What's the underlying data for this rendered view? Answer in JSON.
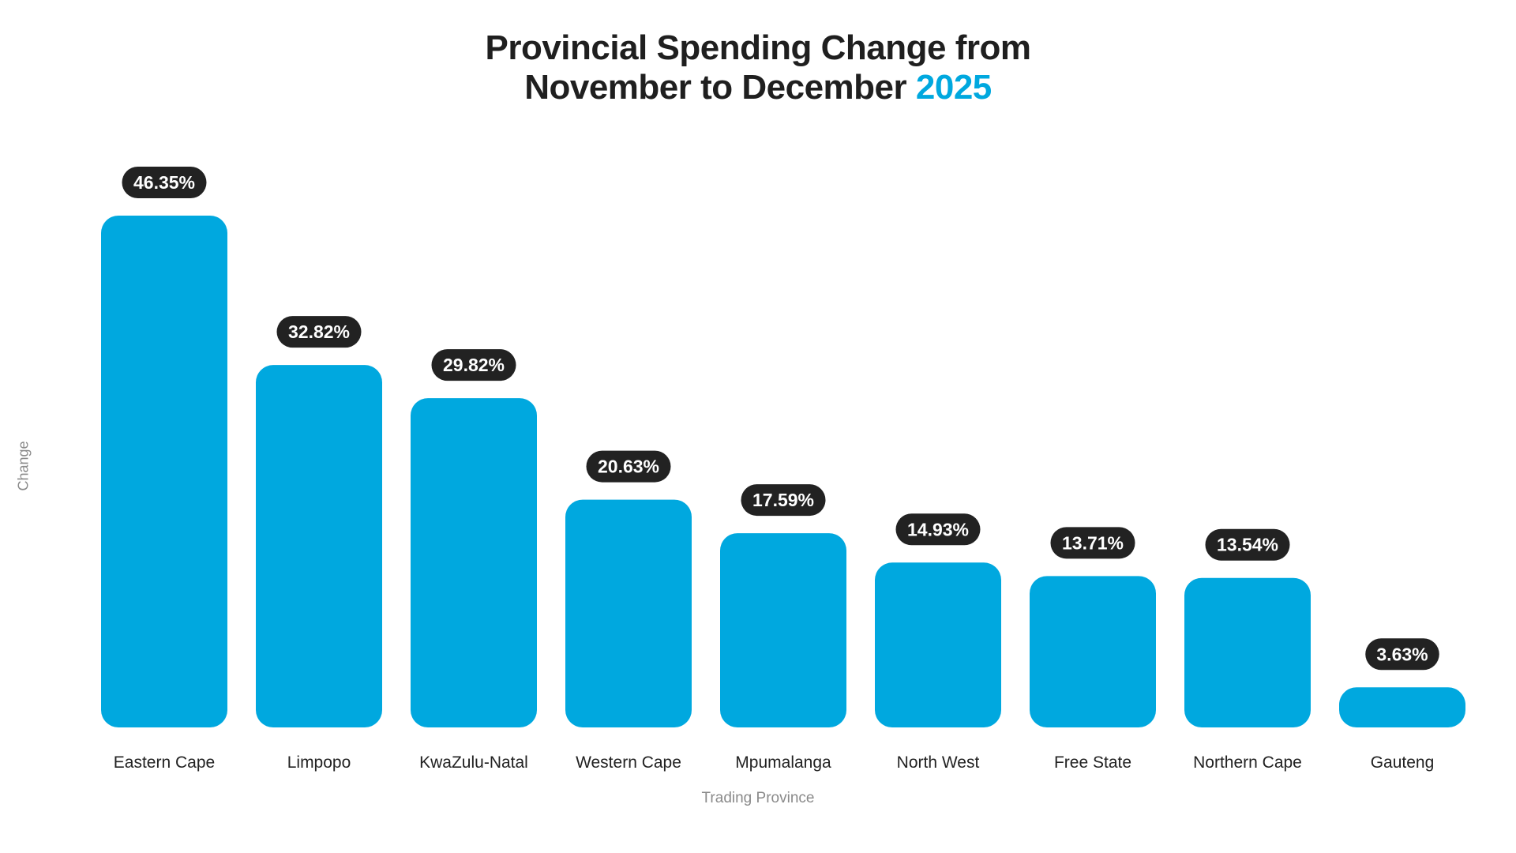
{
  "chart_data": {
    "type": "bar",
    "title_line1": "Provincial Spending Change from",
    "title_line2": "November to December",
    "title_year": "2025",
    "xlabel": "Trading Province",
    "ylabel": "Change",
    "categories": [
      "Eastern Cape",
      "Limpopo",
      "KwaZulu-Natal",
      "Western Cape",
      "Mpumalanga",
      "North West",
      "Free State",
      "Northern Cape",
      "Gauteng"
    ],
    "values": [
      46.35,
      32.82,
      29.82,
      20.63,
      17.59,
      14.93,
      13.71,
      13.54,
      3.63
    ],
    "labels": [
      "46.35%",
      "32.82%",
      "29.82%",
      "20.63%",
      "17.59%",
      "14.93%",
      "13.71%",
      "13.54%",
      "3.63%"
    ],
    "ylim": [
      0,
      46.35
    ],
    "bar_color": "#00a8df",
    "label_bg_color": "#222222",
    "label_text_color": "#ffffff",
    "accent_color": "#00a8df"
  }
}
